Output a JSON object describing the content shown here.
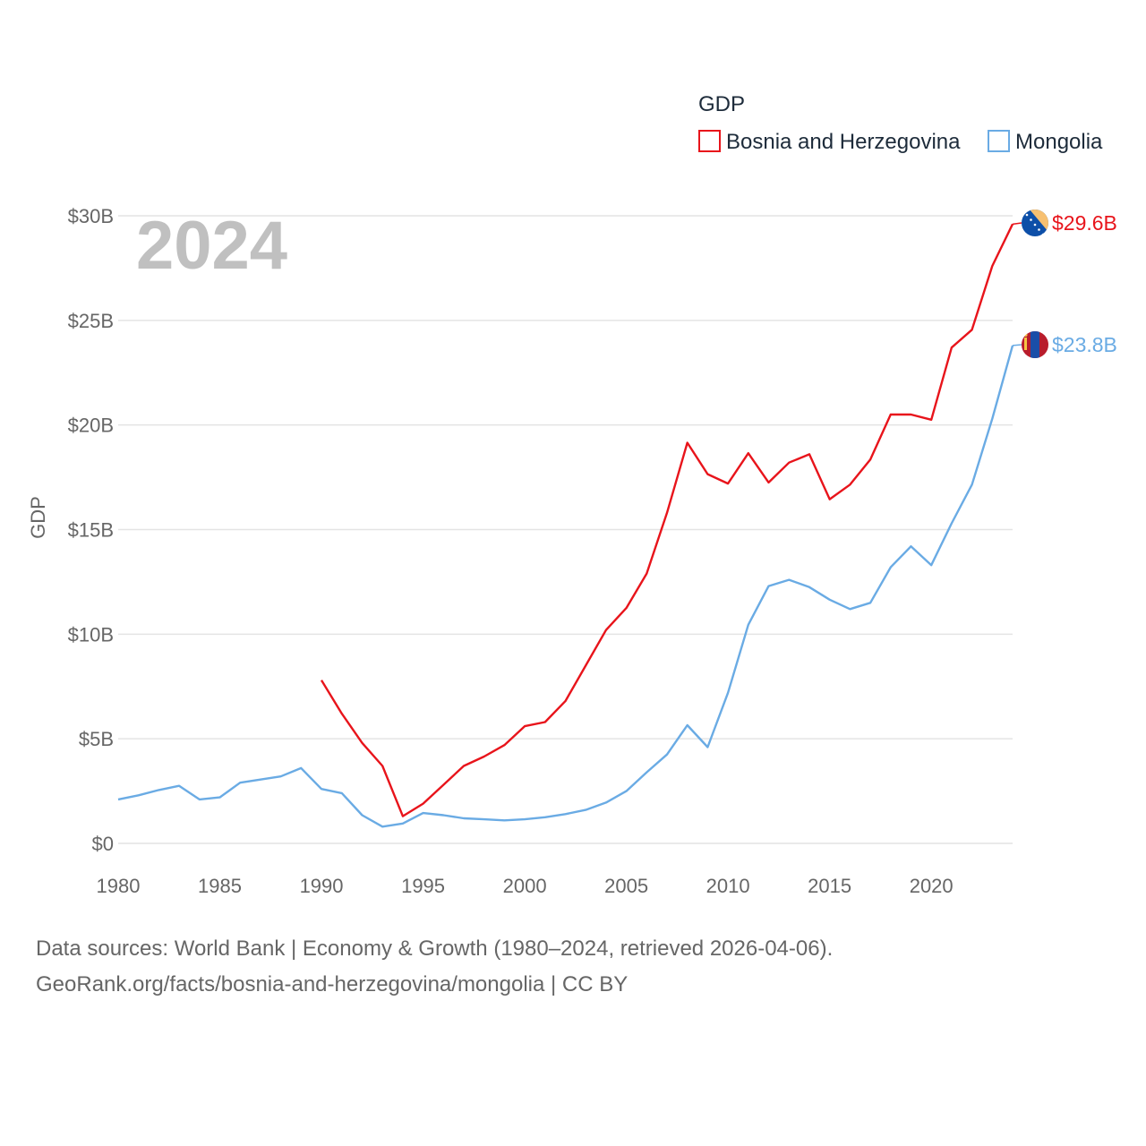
{
  "chart_data": {
    "type": "line",
    "title": "",
    "legend_title": "GDP",
    "year_label": "2024",
    "ylabel": "GDP",
    "xlabel": "",
    "xlim": [
      1980,
      2024
    ],
    "ylim": [
      0,
      30
    ],
    "x_ticks": [
      "1980",
      "1985",
      "1990",
      "1995",
      "2000",
      "2005",
      "2010",
      "2015",
      "2020"
    ],
    "y_ticks": [
      "$0",
      "$5B",
      "$10B",
      "$15B",
      "$20B",
      "$25B",
      "$30B"
    ],
    "grid": true,
    "legend_position": "top-right",
    "series": [
      {
        "name": "Bosnia and Herzegovina",
        "color": "#e8141b",
        "end_label": "$29.6B",
        "flag": "bosnia-flag-icon",
        "x": [
          1990,
          1991,
          1992,
          1993,
          1994,
          1995,
          1996,
          1997,
          1998,
          1999,
          2000,
          2001,
          2002,
          2003,
          2004,
          2005,
          2006,
          2007,
          2008,
          2009,
          2010,
          2011,
          2012,
          2013,
          2014,
          2015,
          2016,
          2017,
          2018,
          2019,
          2020,
          2021,
          2022,
          2023,
          2024
        ],
        "values": [
          7.8,
          6.2,
          4.8,
          3.7,
          1.3,
          1.9,
          2.8,
          3.7,
          4.15,
          4.7,
          5.6,
          5.8,
          6.8,
          8.5,
          10.2,
          11.25,
          12.9,
          15.8,
          19.15,
          17.65,
          17.2,
          18.65,
          17.25,
          18.2,
          18.6,
          16.45,
          17.15,
          18.35,
          20.5,
          20.5,
          20.25,
          23.7,
          24.55,
          27.6,
          29.6
        ]
      },
      {
        "name": "Mongolia",
        "color": "#6aabe4",
        "end_label": "$23.8B",
        "flag": "mongolia-flag-icon",
        "x": [
          1980,
          1981,
          1982,
          1983,
          1984,
          1985,
          1986,
          1987,
          1988,
          1989,
          1990,
          1991,
          1992,
          1993,
          1994,
          1995,
          1996,
          1997,
          1998,
          1999,
          2000,
          2001,
          2002,
          2003,
          2004,
          2005,
          2006,
          2007,
          2008,
          2009,
          2010,
          2011,
          2012,
          2013,
          2014,
          2015,
          2016,
          2017,
          2018,
          2019,
          2020,
          2021,
          2022,
          2023,
          2024
        ],
        "values": [
          2.1,
          2.3,
          2.55,
          2.75,
          2.1,
          2.2,
          2.9,
          3.05,
          3.2,
          3.6,
          2.6,
          2.4,
          1.35,
          0.8,
          0.95,
          1.45,
          1.35,
          1.2,
          1.15,
          1.1,
          1.15,
          1.25,
          1.4,
          1.6,
          1.95,
          2.5,
          3.4,
          4.25,
          5.65,
          4.6,
          7.2,
          10.45,
          12.3,
          12.6,
          12.25,
          11.65,
          11.2,
          11.5,
          13.2,
          14.2,
          13.3,
          15.3,
          17.15,
          20.3,
          23.8
        ]
      }
    ]
  },
  "footer": {
    "line1": "Data sources: World Bank | Economy & Growth (1980–2024, retrieved 2026-04-06).",
    "line2": "GeoRank.org/facts/bosnia-and-herzegovina/mongolia | CC BY"
  }
}
